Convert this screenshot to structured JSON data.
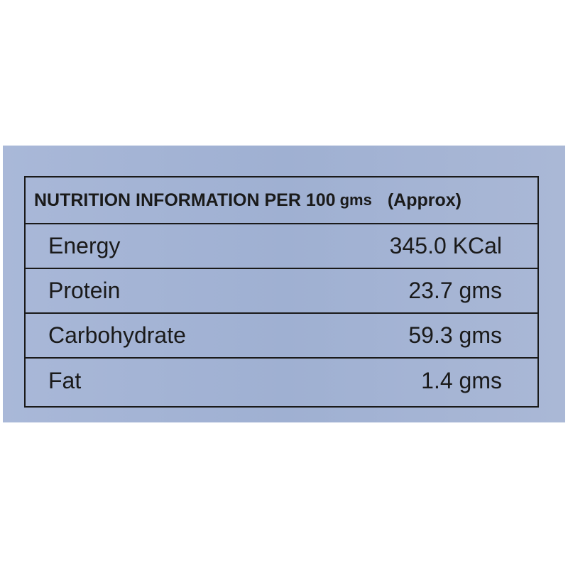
{
  "header": {
    "title": "NUTRITION INFORMATION PER 100",
    "unit": "gms",
    "note": "(Approx)"
  },
  "table": {
    "rows": [
      [
        "Energy",
        "345.0 KCal"
      ],
      [
        "Protein",
        "23.7 gms"
      ],
      [
        "Carbohydrate",
        "59.3 gms"
      ],
      [
        "Fat",
        "1.4 gms"
      ]
    ]
  }
}
